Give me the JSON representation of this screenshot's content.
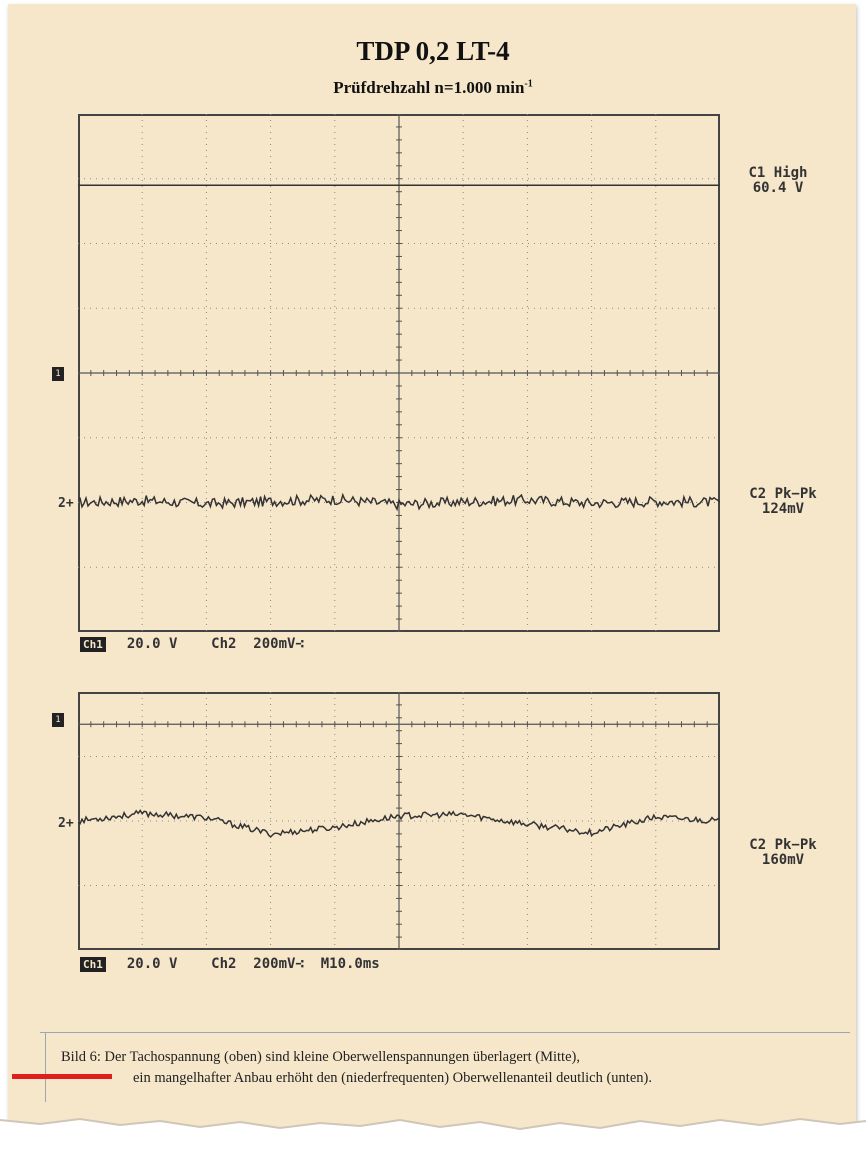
{
  "title": "TDP 0,2 LT-4",
  "subtitle_text": "Prüfdrehzahl n=1.000 min",
  "subtitle_exp": "-1",
  "colors": {
    "paper": "#f6e7cb",
    "trace": "#333333",
    "grid": "#8a8a8a",
    "accent": "#e01e1e"
  },
  "chart_data": [
    {
      "type": "line",
      "title": "",
      "xlabel": "",
      "ylabel": "",
      "grid": true,
      "xlim": [
        0,
        10
      ],
      "ylim": [
        0,
        8
      ],
      "series": [
        {
          "name": "C1",
          "values": [
            6.9,
            6.9,
            6.9,
            6.9,
            6.9,
            6.9,
            6.9,
            6.9,
            6.9,
            6.9,
            6.9
          ]
        },
        {
          "name": "C2",
          "values": [
            2.0,
            2.03,
            1.98,
            2.02,
            2.05,
            1.97,
            2.01,
            2.04,
            1.99,
            2.02,
            2.0
          ]
        }
      ],
      "readouts": [
        {
          "line1": "C1 High",
          "line2": "60.4 V"
        },
        {
          "line1": "C2 Pk−Pk",
          "line2": "124mV"
        }
      ],
      "status": {
        "badge": "Ch1",
        "text": "  20.0 V    Ch2  200mV∹"
      },
      "marker1": "1",
      "marker2": "2+"
    },
    {
      "type": "line",
      "title": "",
      "xlabel": "",
      "ylabel": "",
      "grid": true,
      "xlim": [
        0,
        10
      ],
      "ylim": [
        0,
        4
      ],
      "series": [
        {
          "name": "C2",
          "values": [
            2.0,
            2.12,
            2.05,
            1.8,
            1.9,
            2.08,
            2.1,
            1.95,
            1.82,
            2.06,
            2.0
          ]
        }
      ],
      "readouts": [
        {
          "line1": "C2 Pk−Pk",
          "line2": "160mV"
        }
      ],
      "status": {
        "badge": "Ch1",
        "text": "  20.0 V    Ch2  200mV∹  M10.0ms"
      },
      "marker1": "1",
      "marker2": "2+"
    }
  ],
  "caption": {
    "line1": "Bild 6:  Der Tachospannung (oben) sind kleine Oberwellenspannungen überlagert (Mitte),",
    "line2": "ein mangelhafter Anbau erhöht den (niederfrequenten) Oberwellenanteil deutlich (unten)."
  }
}
